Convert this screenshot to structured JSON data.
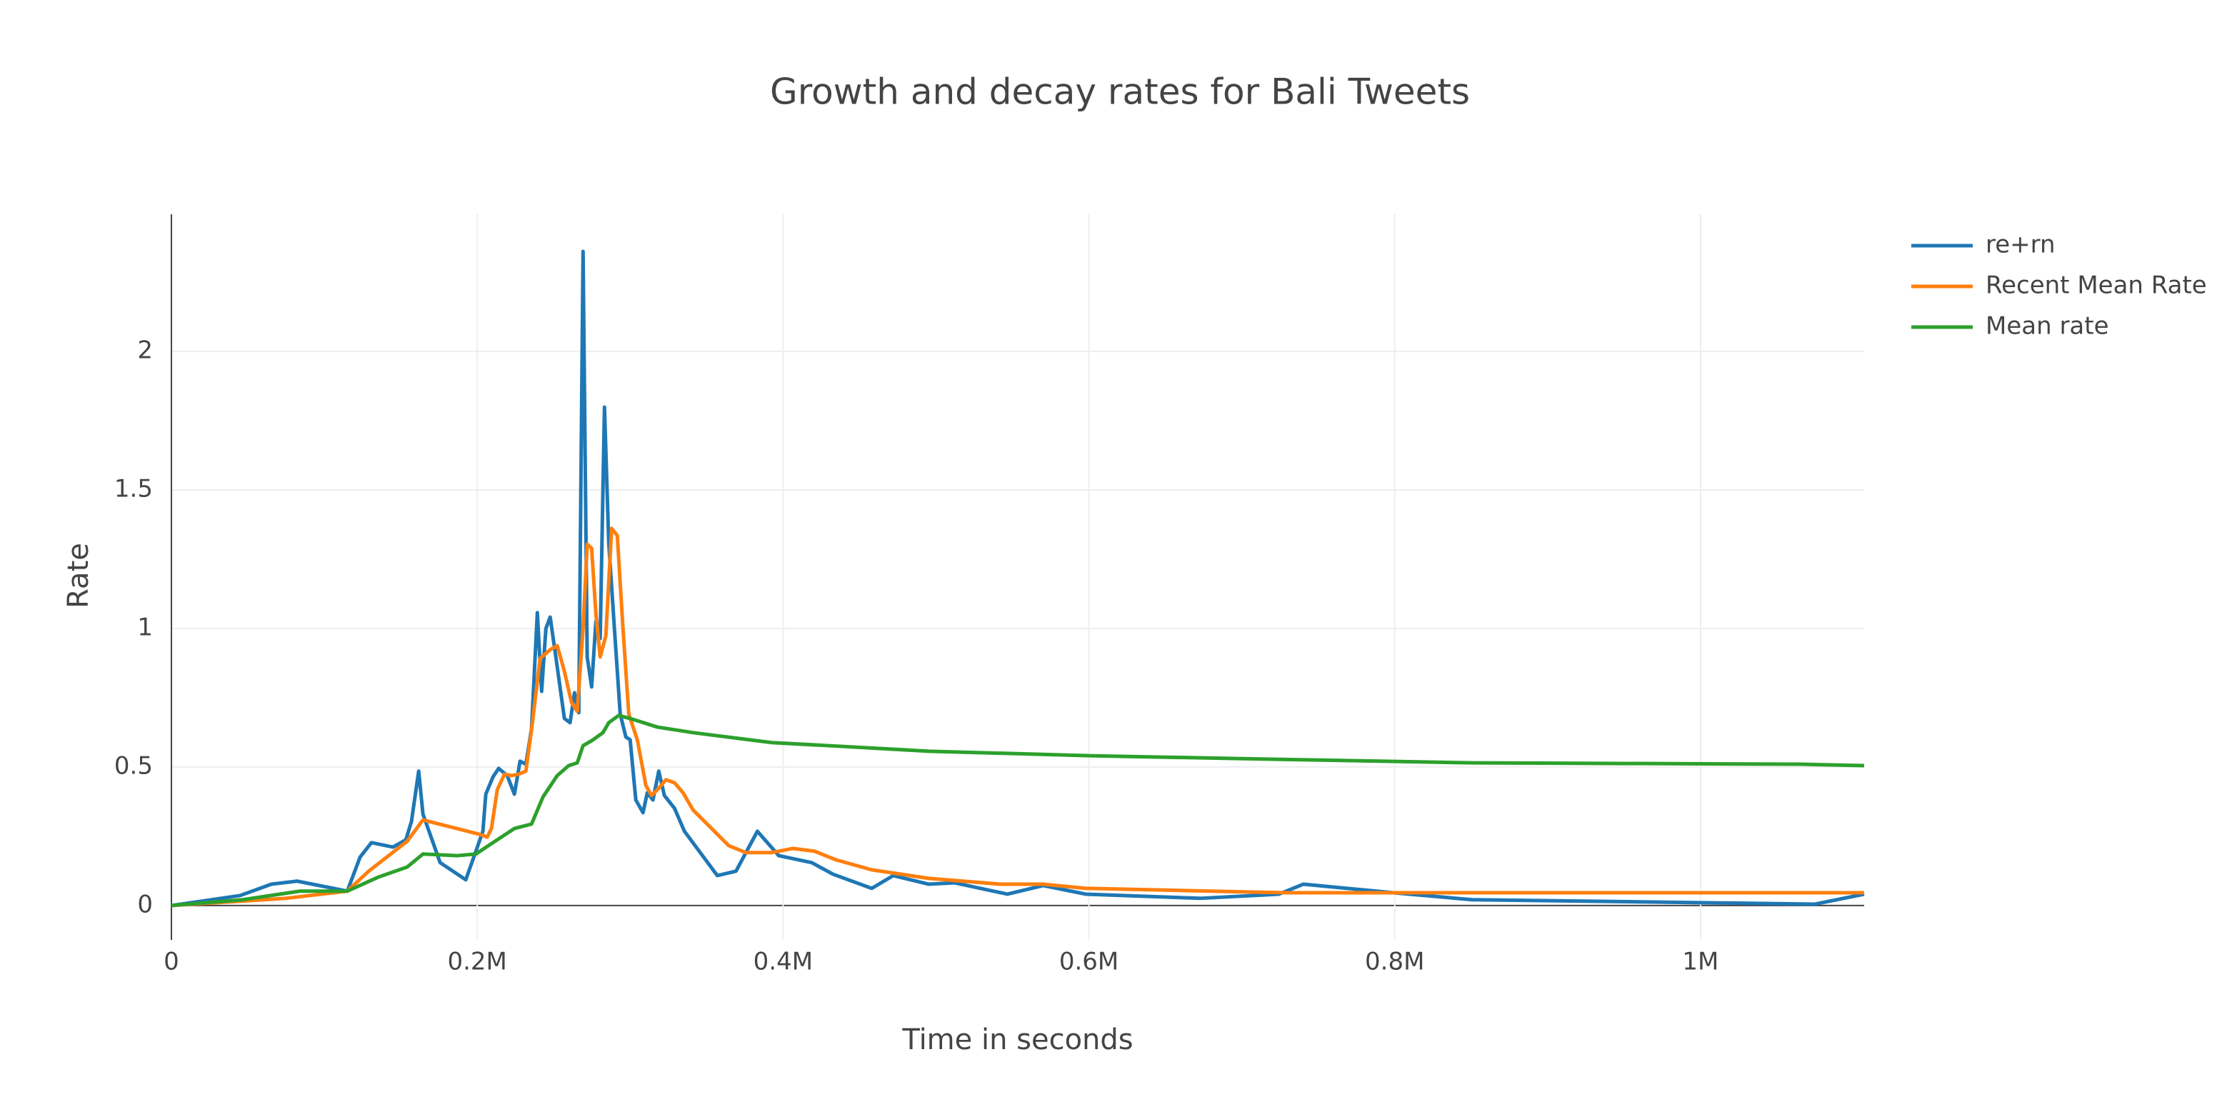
{
  "chart_data": {
    "type": "line",
    "title": "Growth and decay rates for Bali Tweets",
    "x_label": "Time in seconds",
    "y_label": "Rate",
    "xlim": [
      0,
      1107000
    ],
    "ylim": [
      -0.124,
      2.495
    ],
    "xticks": [
      0,
      {
        "value": 200000,
        "label": "0.2M"
      },
      {
        "value": 400000,
        "label": "0.4M"
      },
      {
        "value": 600000,
        "label": "0.6M"
      },
      {
        "value": 800000,
        "label": "0.8M"
      },
      {
        "value": 1000000,
        "label": "1M"
      }
    ],
    "yticks": [
      0,
      0.5,
      1,
      1.5,
      2
    ],
    "grid": true,
    "legend": "top-right",
    "series": [
      {
        "name": "re+rn",
        "color": "#1f77b4",
        "x": [
          0,
          44860,
          65400,
          82200,
          115000,
          123400,
          130800,
          144900,
          153300,
          157000,
          161700,
          164500,
          175700,
          192500,
          203700,
          205600,
          210300,
          214000,
          219600,
          224300,
          228000,
          231800,
          235500,
          239300,
          242100,
          244900,
          247700,
          251400,
          257000,
          260700,
          263600,
          266400,
          269200,
          271900,
          274800,
          277600,
          280400,
          283200,
          286000,
          289700,
          293500,
          297200,
          300000,
          303700,
          308400,
          311200,
          314900,
          318700,
          322400,
          329000,
          335500,
          357000,
          369200,
          383200,
          397200,
          418700,
          432700,
          458000,
          472000,
          495300,
          512100,
          546700,
          570100,
          598100,
          672900,
          724300,
          740200,
          799100,
          850500,
          1074800,
          1107000
        ],
        "values": [
          0,
          0.036,
          0.077,
          0.088,
          0.052,
          0.175,
          0.227,
          0.211,
          0.237,
          0.304,
          0.485,
          0.33,
          0.155,
          0.093,
          0.268,
          0.402,
          0.464,
          0.495,
          0.469,
          0.402,
          0.521,
          0.51,
          0.639,
          1.057,
          0.773,
          1.0,
          1.041,
          0.897,
          0.675,
          0.66,
          0.768,
          0.696,
          2.361,
          0.897,
          0.789,
          1.026,
          0.964,
          1.799,
          1.309,
          1.0,
          0.691,
          0.608,
          0.598,
          0.381,
          0.335,
          0.407,
          0.381,
          0.485,
          0.397,
          0.351,
          0.268,
          0.108,
          0.124,
          0.268,
          0.18,
          0.155,
          0.113,
          0.062,
          0.108,
          0.077,
          0.082,
          0.041,
          0.072,
          0.041,
          0.026,
          0.041,
          0.077,
          0.046,
          0.021,
          0.005,
          0.041
        ]
      },
      {
        "name": "Recent Mean Rate",
        "color": "#ff7f0e",
        "x": [
          0,
          74800,
          115000,
          129000,
          154200,
          164500,
          200900,
          206500,
          209300,
          213100,
          217800,
          222400,
          227100,
          231800,
          235500,
          241100,
          247700,
          252300,
          257000,
          261700,
          265400,
          269200,
          271900,
          274800,
          277600,
          280400,
          284100,
          287900,
          291600,
          295300,
          299100,
          304700,
          310300,
          314000,
          317800,
          323400,
          329000,
          334600,
          341100,
          364500,
          375700,
          392500,
          406500,
          420600,
          434600,
          457900,
          495300,
          542100,
          570100,
          598100,
          728900,
          822400,
          1107000
        ],
        "values": [
          0,
          0.026,
          0.052,
          0.124,
          0.232,
          0.309,
          0.258,
          0.247,
          0.278,
          0.418,
          0.474,
          0.469,
          0.474,
          0.485,
          0.634,
          0.892,
          0.923,
          0.938,
          0.845,
          0.732,
          0.701,
          1.0,
          1.304,
          1.289,
          1.052,
          0.897,
          0.974,
          1.361,
          1.335,
          1.0,
          0.691,
          0.598,
          0.433,
          0.397,
          0.418,
          0.454,
          0.443,
          0.407,
          0.345,
          0.216,
          0.191,
          0.191,
          0.206,
          0.196,
          0.165,
          0.129,
          0.098,
          0.077,
          0.077,
          0.062,
          0.046,
          0.046,
          0.046
        ]
      },
      {
        "name": "Mean rate",
        "color": "#2ca02c",
        "x": [
          0,
          46700,
          84100,
          115000,
          135500,
          154200,
          164500,
          186900,
          199100,
          210300,
          224300,
          235500,
          243000,
          252300,
          259800,
          265400,
          269200,
          275700,
          282200,
          286000,
          292500,
          300000,
          317800,
          341100,
          392500,
          429900,
          495300,
          598100,
          691600,
          850500,
          1065400,
          1107000
        ],
        "values": [
          0,
          0.021,
          0.052,
          0.052,
          0.103,
          0.139,
          0.186,
          0.18,
          0.186,
          0.227,
          0.278,
          0.294,
          0.392,
          0.469,
          0.505,
          0.515,
          0.577,
          0.598,
          0.624,
          0.66,
          0.686,
          0.675,
          0.644,
          0.624,
          0.588,
          0.577,
          0.557,
          0.541,
          0.531,
          0.515,
          0.51,
          0.505
        ]
      }
    ]
  }
}
